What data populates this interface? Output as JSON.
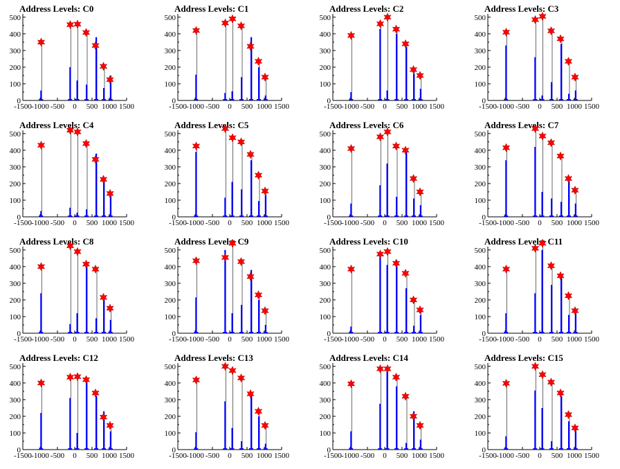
{
  "figure": {
    "x_ticks": [
      -1500,
      -1000,
      -500,
      0,
      500,
      1000,
      1500
    ],
    "x_tick_labels": [
      "-1500",
      "-1000",
      "-500",
      "0",
      "500",
      "1000",
      "1500"
    ],
    "y_ticks": [
      0,
      100,
      200,
      300,
      400,
      500
    ],
    "y_tick_labels": [
      "0",
      "100",
      "200",
      "300",
      "400",
      "500"
    ],
    "histogram_color": "#0000ff",
    "peak_marker_color": "#ff0000"
  },
  "chart_data": [
    {
      "type": "bar",
      "title": "Address Levels: C0",
      "xlim": [
        -1500,
        1500
      ],
      "ylim": [
        0,
        520
      ],
      "peaks": [
        {
          "x": -970,
          "y": 350
        },
        {
          "x": -130,
          "y": 455
        },
        {
          "x": 80,
          "y": 458
        },
        {
          "x": 330,
          "y": 408
        },
        {
          "x": 600,
          "y": 330
        },
        {
          "x": 830,
          "y": 205
        },
        {
          "x": 1020,
          "y": 125
        }
      ],
      "bars": [
        {
          "x": -975,
          "y": 60
        },
        {
          "x": -135,
          "y": 200
        },
        {
          "x": 70,
          "y": 120
        },
        {
          "x": 340,
          "y": 95
        },
        {
          "x": 620,
          "y": 380
        },
        {
          "x": 840,
          "y": 75
        },
        {
          "x": 1035,
          "y": 150
        }
      ]
    },
    {
      "type": "bar",
      "title": "Address Levels: C1",
      "xlim": [
        -1500,
        1500
      ],
      "ylim": [
        0,
        520
      ],
      "peaks": [
        {
          "x": -970,
          "y": 420
        },
        {
          "x": -130,
          "y": 465
        },
        {
          "x": 80,
          "y": 490
        },
        {
          "x": 330,
          "y": 448
        },
        {
          "x": 600,
          "y": 325
        },
        {
          "x": 830,
          "y": 235
        },
        {
          "x": 1020,
          "y": 140
        }
      ],
      "bars": [
        {
          "x": -975,
          "y": 155
        },
        {
          "x": -135,
          "y": 45
        },
        {
          "x": 70,
          "y": 55
        },
        {
          "x": 340,
          "y": 140
        },
        {
          "x": 620,
          "y": 380
        },
        {
          "x": 840,
          "y": 200
        },
        {
          "x": 1035,
          "y": 30
        }
      ]
    },
    {
      "type": "bar",
      "title": "Address Levels: C2",
      "xlim": [
        -1500,
        1500
      ],
      "ylim": [
        0,
        520
      ],
      "peaks": [
        {
          "x": -970,
          "y": 390
        },
        {
          "x": -130,
          "y": 460
        },
        {
          "x": 80,
          "y": 500
        },
        {
          "x": 330,
          "y": 428
        },
        {
          "x": 600,
          "y": 340
        },
        {
          "x": 830,
          "y": 185
        },
        {
          "x": 1020,
          "y": 150
        }
      ],
      "bars": [
        {
          "x": -975,
          "y": 50
        },
        {
          "x": -135,
          "y": 430
        },
        {
          "x": 70,
          "y": 60
        },
        {
          "x": 340,
          "y": 400
        },
        {
          "x": 620,
          "y": 320
        },
        {
          "x": 840,
          "y": 160
        },
        {
          "x": 1035,
          "y": 70
        }
      ]
    },
    {
      "type": "bar",
      "title": "Address Levels: C3",
      "xlim": [
        -1500,
        1500
      ],
      "ylim": [
        0,
        520
      ],
      "peaks": [
        {
          "x": -970,
          "y": 410
        },
        {
          "x": -130,
          "y": 485
        },
        {
          "x": 80,
          "y": 505
        },
        {
          "x": 330,
          "y": 418
        },
        {
          "x": 600,
          "y": 370
        },
        {
          "x": 830,
          "y": 235
        },
        {
          "x": 1020,
          "y": 140
        }
      ],
      "bars": [
        {
          "x": -975,
          "y": 330
        },
        {
          "x": -135,
          "y": 260
        },
        {
          "x": 70,
          "y": 30
        },
        {
          "x": 340,
          "y": 110
        },
        {
          "x": 620,
          "y": 340
        },
        {
          "x": 840,
          "y": 40
        },
        {
          "x": 1035,
          "y": 60
        }
      ]
    },
    {
      "type": "bar",
      "title": "Address Levels: C4",
      "xlim": [
        -1500,
        1500
      ],
      "ylim": [
        0,
        520
      ],
      "peaks": [
        {
          "x": -970,
          "y": 430
        },
        {
          "x": -130,
          "y": 520
        },
        {
          "x": 80,
          "y": 510
        },
        {
          "x": 330,
          "y": 440
        },
        {
          "x": 600,
          "y": 345
        },
        {
          "x": 830,
          "y": 225
        },
        {
          "x": 1020,
          "y": 140
        }
      ],
      "bars": [
        {
          "x": -975,
          "y": 35
        },
        {
          "x": -135,
          "y": 55
        },
        {
          "x": 70,
          "y": 25
        },
        {
          "x": 340,
          "y": 45
        },
        {
          "x": 620,
          "y": 380
        },
        {
          "x": 840,
          "y": 230
        },
        {
          "x": 1035,
          "y": 140
        }
      ]
    },
    {
      "type": "bar",
      "title": "Address Levels: C5",
      "xlim": [
        -1500,
        1500
      ],
      "ylim": [
        0,
        520
      ],
      "peaks": [
        {
          "x": -970,
          "y": 425
        },
        {
          "x": -130,
          "y": 530
        },
        {
          "x": 80,
          "y": 475
        },
        {
          "x": 330,
          "y": 450
        },
        {
          "x": 600,
          "y": 375
        },
        {
          "x": 830,
          "y": 250
        },
        {
          "x": 1020,
          "y": 155
        }
      ],
      "bars": [
        {
          "x": -975,
          "y": 390
        },
        {
          "x": -135,
          "y": 115
        },
        {
          "x": 70,
          "y": 210
        },
        {
          "x": 340,
          "y": 165
        },
        {
          "x": 620,
          "y": 340
        },
        {
          "x": 840,
          "y": 95
        },
        {
          "x": 1035,
          "y": 130
        }
      ]
    },
    {
      "type": "bar",
      "title": "Address Levels: C6",
      "xlim": [
        -1500,
        1500
      ],
      "ylim": [
        0,
        520
      ],
      "peaks": [
        {
          "x": -970,
          "y": 410
        },
        {
          "x": -130,
          "y": 480
        },
        {
          "x": 80,
          "y": 510
        },
        {
          "x": 330,
          "y": 425
        },
        {
          "x": 600,
          "y": 400
        },
        {
          "x": 830,
          "y": 230
        },
        {
          "x": 1020,
          "y": 150
        }
      ],
      "bars": [
        {
          "x": -975,
          "y": 80
        },
        {
          "x": -135,
          "y": 190
        },
        {
          "x": 70,
          "y": 320
        },
        {
          "x": 340,
          "y": 120
        },
        {
          "x": 620,
          "y": 400
        },
        {
          "x": 840,
          "y": 110
        },
        {
          "x": 1035,
          "y": 70
        }
      ]
    },
    {
      "type": "bar",
      "title": "Address Levels: C7",
      "xlim": [
        -1500,
        1500
      ],
      "ylim": [
        0,
        520
      ],
      "peaks": [
        {
          "x": -970,
          "y": 415
        },
        {
          "x": -130,
          "y": 530
        },
        {
          "x": 80,
          "y": 485
        },
        {
          "x": 330,
          "y": 445
        },
        {
          "x": 600,
          "y": 365
        },
        {
          "x": 830,
          "y": 230
        },
        {
          "x": 1020,
          "y": 160
        }
      ],
      "bars": [
        {
          "x": -975,
          "y": 340
        },
        {
          "x": -135,
          "y": 420
        },
        {
          "x": 70,
          "y": 150
        },
        {
          "x": 340,
          "y": 110
        },
        {
          "x": 620,
          "y": 90
        },
        {
          "x": 840,
          "y": 210
        },
        {
          "x": 1035,
          "y": 80
        }
      ]
    },
    {
      "type": "bar",
      "title": "Address Levels: C8",
      "xlim": [
        -1500,
        1500
      ],
      "ylim": [
        0,
        520
      ],
      "peaks": [
        {
          "x": -970,
          "y": 400
        },
        {
          "x": -130,
          "y": 525
        },
        {
          "x": 80,
          "y": 490
        },
        {
          "x": 330,
          "y": 415
        },
        {
          "x": 600,
          "y": 385
        },
        {
          "x": 830,
          "y": 215
        },
        {
          "x": 1020,
          "y": 150
        }
      ],
      "bars": [
        {
          "x": -975,
          "y": 240
        },
        {
          "x": -135,
          "y": 55
        },
        {
          "x": 70,
          "y": 120
        },
        {
          "x": 340,
          "y": 400
        },
        {
          "x": 620,
          "y": 90
        },
        {
          "x": 840,
          "y": 200
        },
        {
          "x": 1035,
          "y": 80
        }
      ]
    },
    {
      "type": "bar",
      "title": "Address Levels: C9",
      "xlim": [
        -1500,
        1500
      ],
      "ylim": [
        0,
        520
      ],
      "peaks": [
        {
          "x": -970,
          "y": 435
        },
        {
          "x": -130,
          "y": 455
        },
        {
          "x": 80,
          "y": 540
        },
        {
          "x": 330,
          "y": 430
        },
        {
          "x": 600,
          "y": 340
        },
        {
          "x": 830,
          "y": 230
        },
        {
          "x": 1020,
          "y": 135
        }
      ],
      "bars": [
        {
          "x": -975,
          "y": 215
        },
        {
          "x": -135,
          "y": 500
        },
        {
          "x": 70,
          "y": 120
        },
        {
          "x": 340,
          "y": 170
        },
        {
          "x": 620,
          "y": 380
        },
        {
          "x": 840,
          "y": 200
        },
        {
          "x": 1035,
          "y": 50
        }
      ]
    },
    {
      "type": "bar",
      "title": "Address Levels: C10",
      "xlim": [
        -1500,
        1500
      ],
      "ylim": [
        0,
        520
      ],
      "peaks": [
        {
          "x": -970,
          "y": 385
        },
        {
          "x": -130,
          "y": 475
        },
        {
          "x": 80,
          "y": 490
        },
        {
          "x": 330,
          "y": 420
        },
        {
          "x": 600,
          "y": 360
        },
        {
          "x": 830,
          "y": 200
        },
        {
          "x": 1020,
          "y": 140
        }
      ],
      "bars": [
        {
          "x": -975,
          "y": 40
        },
        {
          "x": -135,
          "y": 490
        },
        {
          "x": 70,
          "y": 410
        },
        {
          "x": 340,
          "y": 440
        },
        {
          "x": 620,
          "y": 270
        },
        {
          "x": 840,
          "y": 45
        },
        {
          "x": 1035,
          "y": 110
        }
      ]
    },
    {
      "type": "bar",
      "title": "Address Levels: C11",
      "xlim": [
        -1500,
        1500
      ],
      "ylim": [
        0,
        520
      ],
      "peaks": [
        {
          "x": -970,
          "y": 385
        },
        {
          "x": -130,
          "y": 510
        },
        {
          "x": 80,
          "y": 540
        },
        {
          "x": 330,
          "y": 405
        },
        {
          "x": 600,
          "y": 345
        },
        {
          "x": 830,
          "y": 225
        },
        {
          "x": 1020,
          "y": 135
        }
      ],
      "bars": [
        {
          "x": -975,
          "y": 120
        },
        {
          "x": -135,
          "y": 240
        },
        {
          "x": 70,
          "y": 500
        },
        {
          "x": 340,
          "y": 290
        },
        {
          "x": 620,
          "y": 350
        },
        {
          "x": 840,
          "y": 110
        },
        {
          "x": 1035,
          "y": 130
        }
      ]
    },
    {
      "type": "bar",
      "title": "Address Levels: C12",
      "xlim": [
        -1500,
        1500
      ],
      "ylim": [
        0,
        520
      ],
      "peaks": [
        {
          "x": -970,
          "y": 400
        },
        {
          "x": -130,
          "y": 435
        },
        {
          "x": 80,
          "y": 438
        },
        {
          "x": 330,
          "y": 420
        },
        {
          "x": 600,
          "y": 340
        },
        {
          "x": 830,
          "y": 195
        },
        {
          "x": 1020,
          "y": 145
        }
      ],
      "bars": [
        {
          "x": -975,
          "y": 220
        },
        {
          "x": -135,
          "y": 310
        },
        {
          "x": 70,
          "y": 100
        },
        {
          "x": 340,
          "y": 410
        },
        {
          "x": 620,
          "y": 320
        },
        {
          "x": 840,
          "y": 230
        },
        {
          "x": 1035,
          "y": 110
        }
      ]
    },
    {
      "type": "bar",
      "title": "Address Levels: C13",
      "xlim": [
        -1500,
        1500
      ],
      "ylim": [
        0,
        520
      ],
      "peaks": [
        {
          "x": -970,
          "y": 418
        },
        {
          "x": -130,
          "y": 500
        },
        {
          "x": 80,
          "y": 475
        },
        {
          "x": 330,
          "y": 430
        },
        {
          "x": 600,
          "y": 335
        },
        {
          "x": 830,
          "y": 230
        },
        {
          "x": 1020,
          "y": 145
        }
      ],
      "bars": [
        {
          "x": -975,
          "y": 105
        },
        {
          "x": -135,
          "y": 290
        },
        {
          "x": 70,
          "y": 130
        },
        {
          "x": 340,
          "y": 50
        },
        {
          "x": 620,
          "y": 325
        },
        {
          "x": 840,
          "y": 200
        },
        {
          "x": 1035,
          "y": 35
        }
      ]
    },
    {
      "type": "bar",
      "title": "Address Levels: C14",
      "xlim": [
        -1500,
        1500
      ],
      "ylim": [
        0,
        520
      ],
      "peaks": [
        {
          "x": -970,
          "y": 395
        },
        {
          "x": -130,
          "y": 485
        },
        {
          "x": 80,
          "y": 485
        },
        {
          "x": 330,
          "y": 435
        },
        {
          "x": 600,
          "y": 320
        },
        {
          "x": 830,
          "y": 200
        },
        {
          "x": 1020,
          "y": 145
        }
      ],
      "bars": [
        {
          "x": -975,
          "y": 110
        },
        {
          "x": -135,
          "y": 275
        },
        {
          "x": 70,
          "y": 470
        },
        {
          "x": 340,
          "y": 380
        },
        {
          "x": 620,
          "y": 40
        },
        {
          "x": 840,
          "y": 230
        },
        {
          "x": 1035,
          "y": 60
        }
      ]
    },
    {
      "type": "bar",
      "title": "Address Levels: C15",
      "xlim": [
        -1500,
        1500
      ],
      "ylim": [
        0,
        520
      ],
      "peaks": [
        {
          "x": -970,
          "y": 398
        },
        {
          "x": -130,
          "y": 500
        },
        {
          "x": 80,
          "y": 450
        },
        {
          "x": 330,
          "y": 405
        },
        {
          "x": 600,
          "y": 340
        },
        {
          "x": 830,
          "y": 210
        },
        {
          "x": 1020,
          "y": 130
        }
      ],
      "bars": [
        {
          "x": -975,
          "y": 80
        },
        {
          "x": -135,
          "y": 355
        },
        {
          "x": 70,
          "y": 250
        },
        {
          "x": 340,
          "y": 50
        },
        {
          "x": 620,
          "y": 320
        },
        {
          "x": 840,
          "y": 170
        },
        {
          "x": 1035,
          "y": 110
        }
      ]
    }
  ]
}
